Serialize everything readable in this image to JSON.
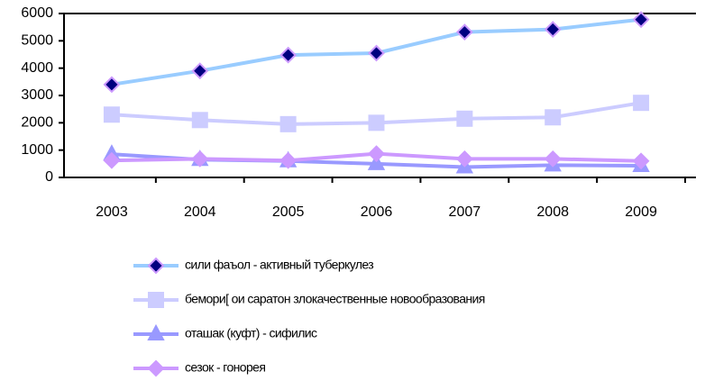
{
  "chart_data": {
    "type": "line",
    "categories": [
      "2003",
      "2004",
      "2005",
      "2006",
      "2007",
      "2008",
      "2009"
    ],
    "series": [
      {
        "name": "сили фаъол - активный туберкулез",
        "color": "#99ccff",
        "marker": "diamond",
        "marker_color": "#000080",
        "marker_edge": "#cc99ff",
        "values": [
          3400,
          3900,
          4480,
          4550,
          5320,
          5420,
          5780
        ]
      },
      {
        "name": "бемори[ ои саратон злокачественные новообразования",
        "color": "#ccccff",
        "marker": "square",
        "marker_color": "#ccccff",
        "marker_edge": "#ccccff",
        "values": [
          2300,
          2100,
          1950,
          2000,
          2150,
          2200,
          2730
        ]
      },
      {
        "name": "оташак (куфт) - сифилис",
        "color": "#9999ff",
        "marker": "triangle",
        "marker_color": "#9999ff",
        "marker_edge": "#9999ff",
        "values": [
          850,
          650,
          600,
          500,
          380,
          450,
          430
        ]
      },
      {
        "name": "сезок - гонорея",
        "color": "#cc99ff",
        "marker": "diamond",
        "marker_color": "#cc99ff",
        "marker_edge": "#cc99ff",
        "values": [
          620,
          680,
          620,
          870,
          680,
          680,
          600
        ]
      }
    ],
    "ylim": [
      0,
      6000
    ],
    "yticks": [
      0,
      1000,
      2000,
      3000,
      4000,
      5000,
      6000
    ],
    "legend": "bottom"
  }
}
